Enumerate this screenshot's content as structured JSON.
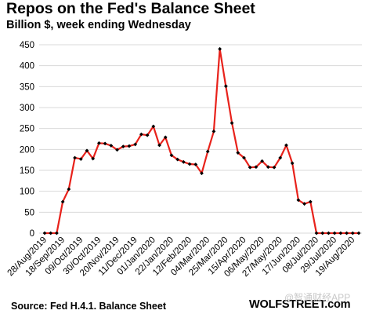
{
  "chart_data": {
    "type": "line",
    "title": "Repos on the Fed's Balance Sheet",
    "subtitle": "Billion $, week ending Wednesday",
    "xlabel": "",
    "ylabel": "",
    "ylim": [
      0,
      450
    ],
    "yticks": [
      0,
      50,
      100,
      150,
      200,
      250,
      300,
      350,
      400,
      450
    ],
    "grid": true,
    "legend": "none",
    "line_color": "#e8221b",
    "marker_color": "#000000",
    "x_tick_labels": [
      "28/Aug/2019",
      "18/Sep/2019",
      "09/Oct/2019",
      "30/Oct/2019",
      "20/Nov/2019",
      "11/Dec/2019",
      "01/Jan/2020",
      "22/Jan/2020",
      "12/Feb/2020",
      "04/Mar/2020",
      "25/Mar/2020",
      "15/Apr/2020",
      "06/May/2020",
      "27/May/2020",
      "17/Jun/2020",
      "08/Jul/2020",
      "29/Jul/2020",
      "19/Aug/2020"
    ],
    "x_tick_every": 3,
    "values": [
      0,
      0,
      0,
      75,
      105,
      180,
      177,
      197,
      178,
      215,
      214,
      209,
      199,
      207,
      208,
      212,
      236,
      234,
      255,
      210,
      229,
      186,
      176,
      170,
      165,
      164,
      143,
      195,
      243,
      440,
      351,
      263,
      192,
      180,
      157,
      158,
      172,
      158,
      157,
      180,
      210,
      167,
      79,
      70,
      75,
      0,
      0,
      0,
      0,
      0,
      0,
      0,
      0
    ]
  },
  "footer": {
    "source": "Source: Fed H.4.1. Balance Sheet",
    "brand": "WOLFSTREET.com",
    "watermark": "@智通财经APP"
  }
}
